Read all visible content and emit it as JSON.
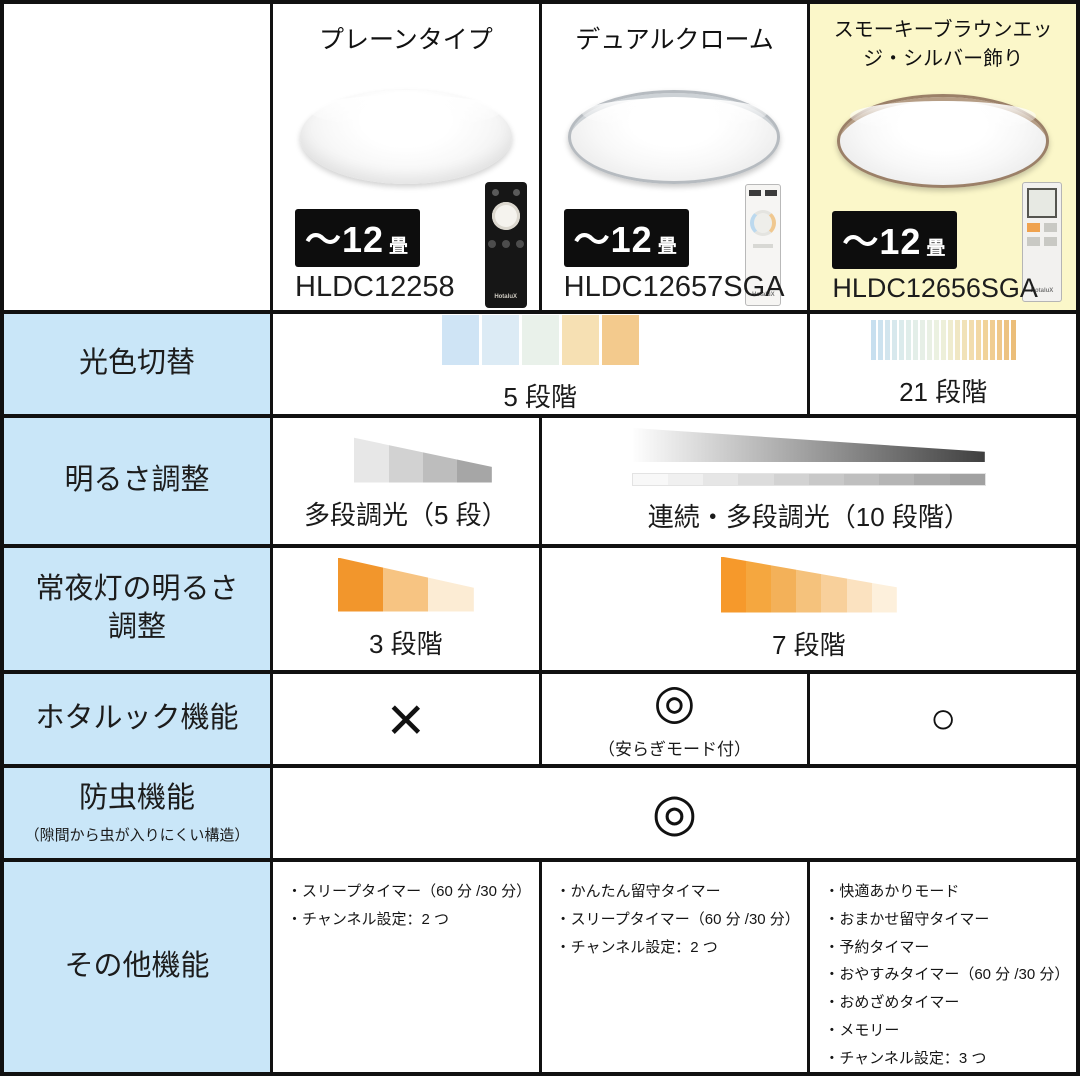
{
  "colors": {
    "highlight_yellow": "#fbf7c9",
    "label_blue": "#c9e6f8",
    "border_black": "#111111",
    "badge_black": "#0d0d0d"
  },
  "header": {
    "columns": [
      {
        "title": "プレーンタイプ",
        "badge_size": "～12",
        "badge_unit": "畳",
        "model": "HLDC12258",
        "remote_brand": "HotaluX"
      },
      {
        "title": "デュアルクローム",
        "badge_size": "～12",
        "badge_unit": "畳",
        "model": "HLDC12657SGA",
        "remote_brand": "HotaluX"
      },
      {
        "title": "スモーキーブラウンエッジ・シルバー飾り",
        "badge_size": "～12",
        "badge_unit": "畳",
        "model": "HLDC12656SGA",
        "remote_brand": "HotaluX"
      }
    ]
  },
  "rows": {
    "light_color": {
      "label": "光色切替",
      "five_step": {
        "caption": "5 段階",
        "swatches": [
          "#cfe4f5",
          "#dcebf5",
          "#e9f1ea",
          "#f6e0b3",
          "#f3ca8d"
        ]
      },
      "twentyone_step": {
        "caption": "21 段階",
        "stripes": [
          "#c7dfef",
          "#cce2ef",
          "#d2e5ee",
          "#d7e8ed",
          "#dbebec",
          "#dfedea",
          "#e3eee8",
          "#e6efe6",
          "#e9f0e4",
          "#ebf1e1",
          "#edefd9",
          "#efeccf",
          "#f0e7c4",
          "#f1e2b9",
          "#f2ddae",
          "#f2d8a4",
          "#f1d39a",
          "#f0cd91",
          "#efc889",
          "#edc381",
          "#ebbe7a"
        ]
      }
    },
    "brightness": {
      "label": "明るさ調整",
      "plain": {
        "caption": "多段調光（5 段）",
        "segments": [
          "#ffffff",
          "#e7e7e7",
          "#d2d2d2",
          "#bdbdbd",
          "#a6a6a6"
        ]
      },
      "merged": {
        "caption": "連続・多段調光（10 段階）",
        "gradient": [
          "#fefefe",
          "#3f3f3f"
        ],
        "steps": [
          "#f8f8f8",
          "#f0f0f0",
          "#e6e6e6",
          "#dcdcdc",
          "#d2d2d2",
          "#c8c8c8",
          "#bfbfbf",
          "#b5b5b5",
          "#ababab",
          "#a1a1a1"
        ]
      }
    },
    "night_light": {
      "label_line1": "常夜灯の明るさ",
      "label_line2": "調整",
      "plain": {
        "caption": "3 段階",
        "segments": [
          "#f2962c",
          "#f7c482",
          "#fcecd4"
        ]
      },
      "merged": {
        "caption": "7 段階",
        "segments": [
          "#f6992b",
          "#f5a73f",
          "#f3b159",
          "#f5c27c",
          "#f8d09b",
          "#fbe2c0",
          "#fdf0dc"
        ]
      }
    },
    "hotaluck": {
      "label": "ホタルック機能",
      "plain_value": "×",
      "dual_value": "◎",
      "dual_note": "（安らぎモード付）",
      "smoky_value": "○"
    },
    "insect": {
      "label": "防虫機能",
      "sublabel": "（隙間から虫が入りにくい構造）",
      "value": "◎"
    },
    "other": {
      "label": "その他機能",
      "plain_items": [
        "・スリープタイマー（60 分 /30 分）",
        "・チャンネル設定：2 つ"
      ],
      "dual_items": [
        "・かんたん留守タイマー",
        "・スリープタイマー（60 分 /30 分）",
        "・チャンネル設定：2 つ"
      ],
      "smoky_items": [
        "・快適あかりモード",
        "・おまかせ留守タイマー",
        "・予約タイマー",
        "・おやすみタイマー（60 分 /30 分）",
        "・おめざめタイマー",
        "・メモリー",
        "・チャンネル設定：3 つ"
      ]
    }
  }
}
